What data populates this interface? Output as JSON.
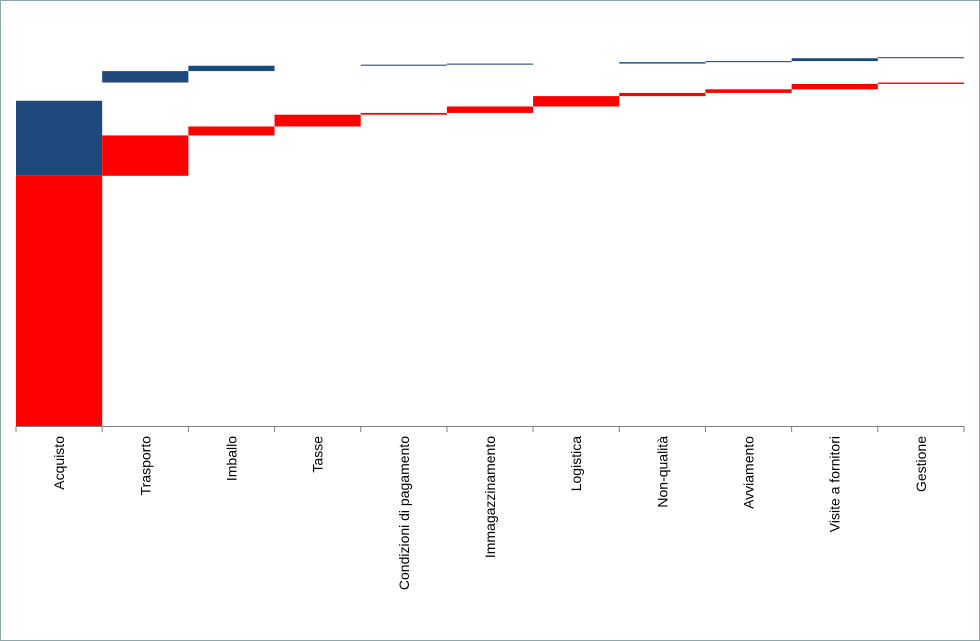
{
  "chart_data": {
    "type": "bar",
    "subtype": "waterfall-stacked",
    "title": "",
    "xlabel": "",
    "ylabel": "",
    "categories": [
      "Acquisto",
      "Trasporto",
      "Imballo",
      "Tasse",
      "Condizioni di pagamento",
      "Immagazzinamento",
      "Logistica",
      "Non-qualità",
      "Avviamento",
      "Visite a fornitori",
      "Gestione"
    ],
    "series": [
      {
        "values": [
          70.0,
          11.3,
          2.5,
          3.3,
          0.5,
          1.8,
          2.9,
          0.9,
          1.0,
          1.5,
          0.4
        ]
      },
      {
        "values": [
          21.0,
          3.2,
          1.5,
          0.0,
          0.3,
          0.3,
          0.0,
          0.4,
          0.3,
          0.8,
          0.3
        ]
      }
    ],
    "ylim": [
      0,
      108
    ],
    "grid": false,
    "legend": "none",
    "colors": {
      "red": "#ff0000",
      "blue": "#1f497d",
      "axis": "#7f7f7f",
      "border": "#8aa8a8"
    }
  }
}
